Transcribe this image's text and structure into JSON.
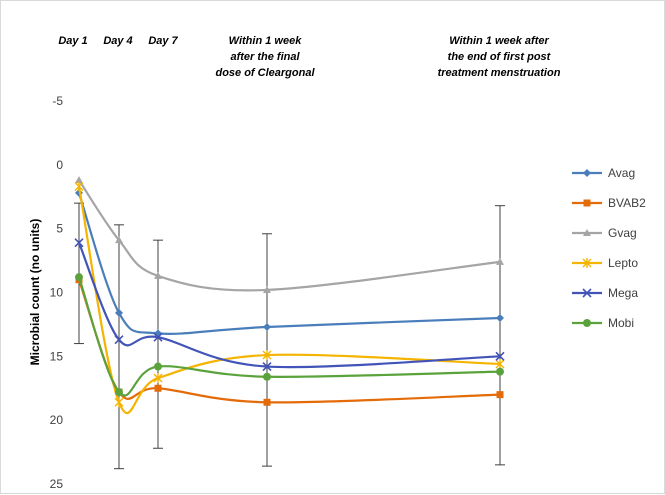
{
  "chart_data": {
    "type": "line",
    "ylabel": "Microbial count (no units)",
    "ylim": [
      25,
      -5
    ],
    "yticks": [
      -5,
      0,
      5,
      10,
      15,
      20,
      25
    ],
    "timepoints": [
      {
        "lines": [
          "Day 1"
        ]
      },
      {
        "lines": [
          "Day 4"
        ]
      },
      {
        "lines": [
          "Day 7"
        ]
      },
      {
        "lines": [
          "Within 1 week",
          "after the final",
          "dose of Cleargonal"
        ]
      },
      {
        "lines": [
          "Within 1 week after",
          "the end of first post",
          "treatment menstruation"
        ]
      }
    ],
    "x": [
      "Day 1",
      "Day 4",
      "Day 7",
      "Within 1 week after the final dose of Cleargonal",
      "Within 1 week after the end of first post treatment menstruation"
    ],
    "error_bars": [
      {
        "x": 0,
        "low": 3.0,
        "high": 14.0
      },
      {
        "x": 1,
        "low": 4.7,
        "high": 23.8
      },
      {
        "x": 2,
        "low": 5.9,
        "high": 22.2
      },
      {
        "x": 3,
        "low": 5.4,
        "high": 23.6
      },
      {
        "x": 4,
        "low": 3.2,
        "high": 23.5
      }
    ],
    "series": [
      {
        "name": "Avag",
        "color": "#4a7ebb",
        "marker": "diamond",
        "values": [
          2.2,
          11.6,
          13.2,
          12.7,
          12.0
        ]
      },
      {
        "name": "BVAB2",
        "color": "#e36c09",
        "marker": "square",
        "values": [
          9.0,
          17.8,
          17.5,
          18.6,
          18.0
        ]
      },
      {
        "name": "Gvag",
        "color": "#a5a5a5",
        "marker": "triangle",
        "values": [
          1.2,
          5.9,
          8.7,
          9.8,
          7.6
        ]
      },
      {
        "name": "Lepto",
        "color": "#f4b400",
        "marker": "star",
        "values": [
          1.7,
          18.6,
          16.7,
          14.9,
          15.6
        ]
      },
      {
        "name": "Mega",
        "color": "#4254b7",
        "marker": "x",
        "values": [
          6.1,
          13.7,
          13.5,
          15.8,
          15.0
        ]
      },
      {
        "name": "Mobi",
        "color": "#5aa33c",
        "marker": "circle",
        "values": [
          8.8,
          17.8,
          15.8,
          16.6,
          16.2
        ]
      }
    ]
  }
}
